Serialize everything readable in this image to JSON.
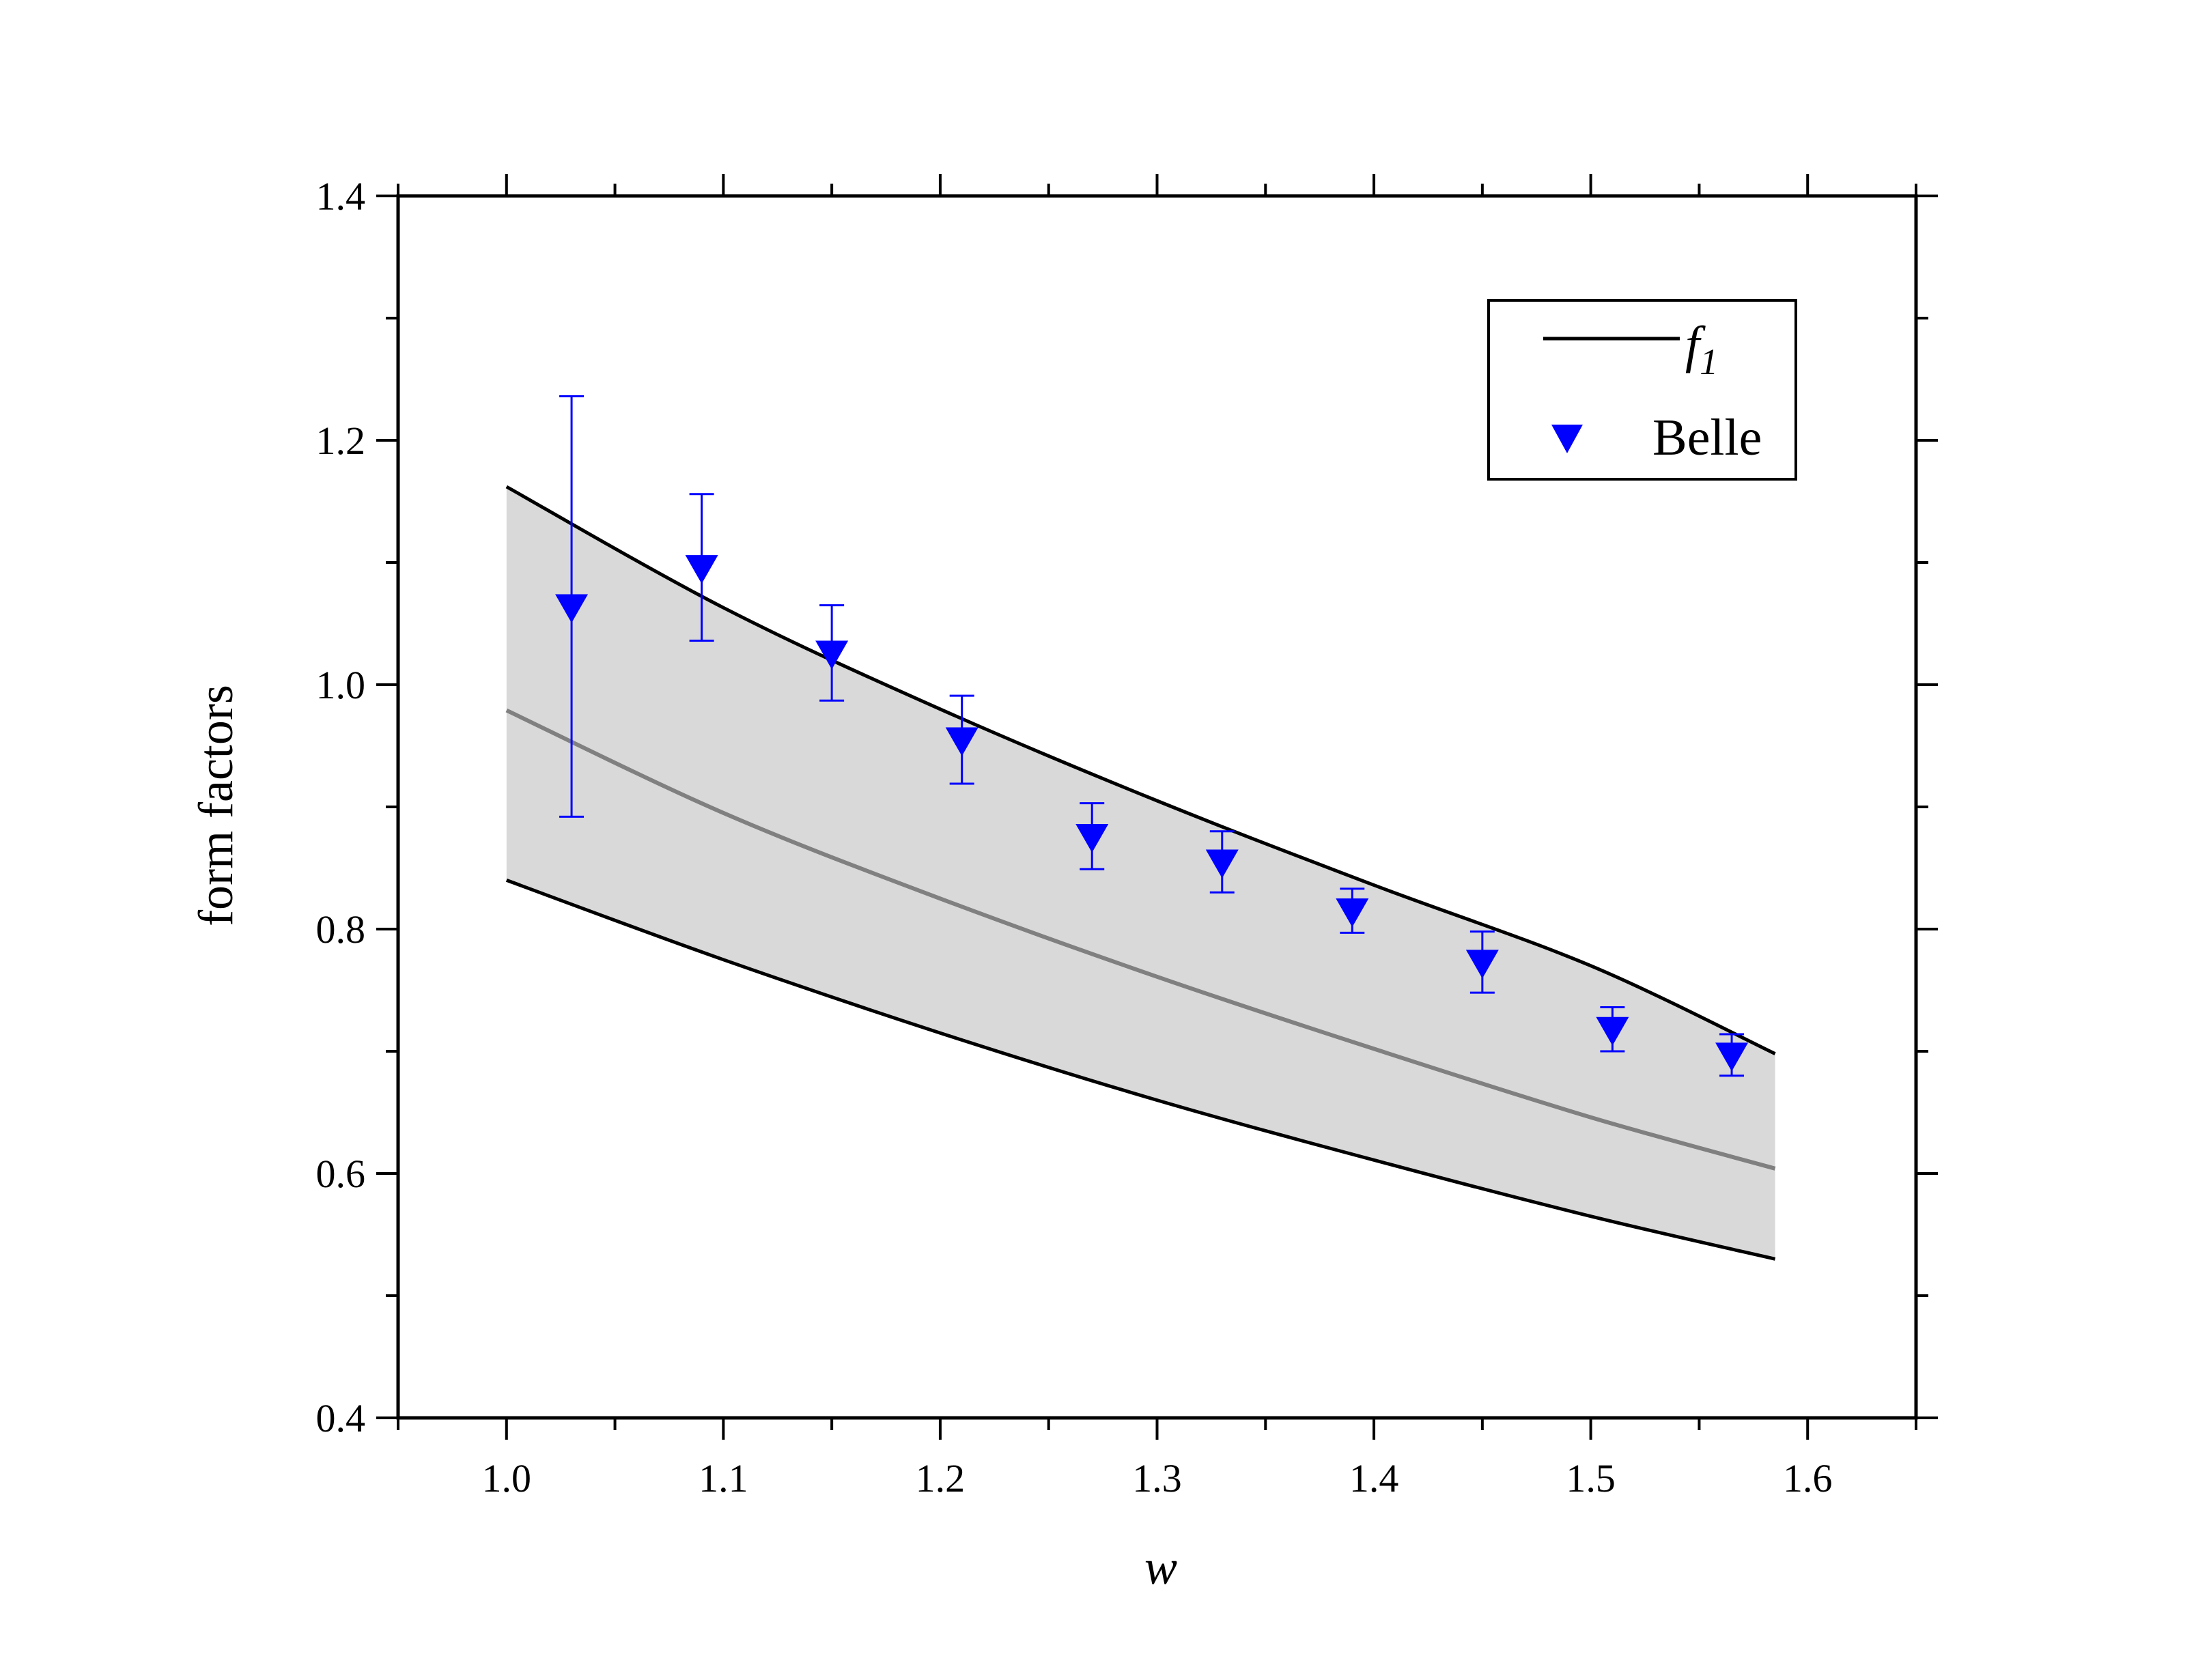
{
  "chart_data": {
    "type": "line",
    "xlabel": "w",
    "ylabel": "form factors",
    "xlim": [
      0.95,
      1.65
    ],
    "ylim": [
      0.4,
      1.4
    ],
    "x_ticks": [
      "1.0",
      "1.1",
      "1.2",
      "1.3",
      "1.4",
      "1.5",
      "1.6"
    ],
    "y_ticks": [
      "0.4",
      "0.6",
      "0.8",
      "1.0",
      "1.2",
      "1.4"
    ],
    "grid": false,
    "legend_position": "top-right",
    "legend": {
      "line_label_main": "f",
      "line_label_sub": "1",
      "points_label": "Belle"
    },
    "band": {
      "x": [
        1.0,
        1.1,
        1.2,
        1.3,
        1.4,
        1.5,
        1.585
      ],
      "upper": [
        1.162,
        1.063,
        0.98,
        0.905,
        0.836,
        0.77,
        0.698
      ],
      "central": [
        0.979,
        0.895,
        0.825,
        0.761,
        0.702,
        0.646,
        0.604
      ],
      "lower": [
        0.84,
        0.775,
        0.715,
        0.66,
        0.611,
        0.565,
        0.53
      ]
    },
    "belle": {
      "x": [
        1.03,
        1.09,
        1.15,
        1.21,
        1.27,
        1.33,
        1.39,
        1.45,
        1.51,
        1.565
      ],
      "y": [
        1.064,
        1.096,
        1.026,
        0.955,
        0.876,
        0.855,
        0.815,
        0.773,
        0.718,
        0.697
      ],
      "y_err": [
        0.172,
        0.06,
        0.039,
        0.036,
        0.027,
        0.025,
        0.018,
        0.025,
        0.018,
        0.017
      ]
    },
    "colors": {
      "band_fill": "#d9d9d9",
      "band_edge": "#000000",
      "central_line": "#808080",
      "belle": "#0000ff"
    }
  }
}
